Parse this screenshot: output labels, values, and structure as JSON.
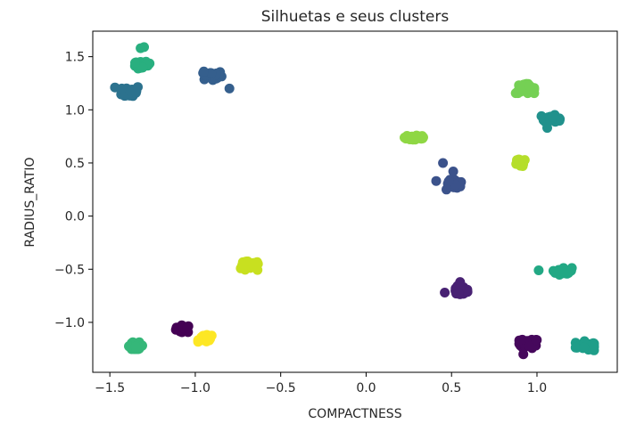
{
  "chart_data": {
    "type": "scatter",
    "title": "Silhuetas e seus clusters",
    "xlabel": "COMPACTNESS",
    "ylabel": "RADIUS_RATIO",
    "xlim": [
      -1.6,
      1.47
    ],
    "ylim": [
      -1.47,
      1.74
    ],
    "xticks": [
      -1.5,
      -1.0,
      -0.5,
      0.0,
      0.5,
      1.0
    ],
    "xtick_labels": [
      "−1.5",
      "−1.0",
      "−0.5",
      "0.0",
      "0.5",
      "1.0"
    ],
    "yticks": [
      -1.0,
      -0.5,
      0.0,
      0.5,
      1.0,
      1.5
    ],
    "ytick_labels": [
      "−1.0",
      "−0.5",
      "0.0",
      "0.5",
      "1.0",
      "1.5"
    ],
    "grid": false,
    "colormap": "viridis",
    "clusters": [
      {
        "center": [
          -1.07,
          -1.06
        ],
        "spread": [
          0.04,
          0.03
        ],
        "color": "#440154"
      },
      {
        "center": [
          0.95,
          -1.2
        ],
        "spread": [
          0.05,
          0.04
        ],
        "color": "#46085c",
        "points": [
          [
            0.92,
            -1.3
          ]
        ]
      },
      {
        "center": [
          0.55,
          -0.7
        ],
        "spread": [
          0.04,
          0.04
        ],
        "color": "#482173",
        "points": [
          [
            0.46,
            -0.72
          ],
          [
            0.55,
            -0.62
          ]
        ]
      },
      {
        "center": [
          0.52,
          0.3
        ],
        "spread": [
          0.04,
          0.04
        ],
        "color": "#3b528b",
        "points": [
          [
            0.45,
            0.5
          ],
          [
            0.41,
            0.33
          ],
          [
            0.47,
            0.25
          ],
          [
            0.51,
            0.42
          ]
        ]
      },
      {
        "center": [
          -0.9,
          1.32
        ],
        "spread": [
          0.05,
          0.04
        ],
        "color": "#355f8d",
        "points": [
          [
            -0.8,
            1.2
          ],
          [
            -0.95,
            1.36
          ]
        ]
      },
      {
        "center": [
          -1.38,
          1.17
        ],
        "spread": [
          0.05,
          0.05
        ],
        "color": "#2c728e",
        "points": [
          [
            -1.47,
            1.21
          ],
          [
            -1.43,
            1.2
          ]
        ]
      },
      {
        "center": [
          1.08,
          0.92
        ],
        "spread": [
          0.05,
          0.03
        ],
        "color": "#21918c",
        "points": [
          [
            1.06,
            0.83
          ]
        ]
      },
      {
        "center": [
          1.28,
          -1.22
        ],
        "spread": [
          0.05,
          0.04
        ],
        "color": "#1f9e89"
      },
      {
        "center": [
          1.15,
          -0.52
        ],
        "spread": [
          0.05,
          0.03
        ],
        "color": "#22a884",
        "points": [
          [
            1.01,
            -0.51
          ]
        ]
      },
      {
        "center": [
          -1.31,
          1.42
        ],
        "spread": [
          0.04,
          0.03
        ],
        "color": "#29af7f",
        "points": [
          [
            -1.3,
            1.59
          ],
          [
            -1.32,
            1.58
          ]
        ]
      },
      {
        "center": [
          -1.35,
          -1.22
        ],
        "spread": [
          0.04,
          0.03
        ],
        "color": "#35b779"
      },
      {
        "center": [
          0.93,
          1.2
        ],
        "spread": [
          0.05,
          0.04
        ],
        "color": "#75d054"
      },
      {
        "center": [
          0.29,
          0.74
        ],
        "spread": [
          0.06,
          0.03
        ],
        "color": "#8fd744"
      },
      {
        "center": [
          0.9,
          0.5
        ],
        "spread": [
          0.03,
          0.03
        ],
        "color": "#b5de2b"
      },
      {
        "center": [
          -0.68,
          -0.47
        ],
        "spread": [
          0.05,
          0.04
        ],
        "color": "#c8e020"
      },
      {
        "center": [
          -0.94,
          -1.15
        ],
        "spread": [
          0.04,
          0.03
        ],
        "color": "#fde725"
      }
    ]
  }
}
